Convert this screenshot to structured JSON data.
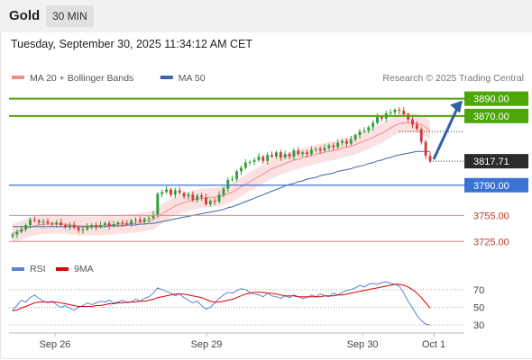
{
  "header": {
    "asset": "Gold",
    "timeframe": "30 MIN",
    "timestamp": "Tuesday, September 30, 2025 11:34:12 AM CET"
  },
  "colors": {
    "resistance": "#4ea60b",
    "support": "#3a73d4",
    "support_weak": "#f08080",
    "arrow": "#2f5fa6",
    "candle_up": "#2e9e3e",
    "candle_down": "#d33a3a",
    "ma20": "#f28b8b",
    "ma50": "#3d64ad",
    "bollinger": "#fbe1e1",
    "rsi": "#5b82d6",
    "rsi_ma": "#e00000"
  },
  "chart_data": [
    {
      "type": "candlestick",
      "legend": [
        {
          "name": "MA 20 + Bollinger Bands",
          "color": "#f28b8b"
        },
        {
          "name": "MA 50",
          "color": "#3d64ad"
        }
      ],
      "credit": "Research © 2025 Trading Central",
      "x_ticks": [
        "Sep 26",
        "Sep 29",
        "Sep 30",
        "Oct 1"
      ],
      "ylim": [
        3718,
        3900
      ],
      "levels": [
        {
          "value": 3890,
          "label": "3890.00",
          "kind": "resistance"
        },
        {
          "value": 3870,
          "label": "3870.00",
          "kind": "resistance"
        },
        {
          "value": 3817.71,
          "label": "3817.71",
          "kind": "last"
        },
        {
          "value": 3790,
          "label": "3790.00",
          "kind": "support"
        },
        {
          "value": 3755,
          "label": "3755.00",
          "kind": "support_weak"
        },
        {
          "value": 3725,
          "label": "3725.00",
          "kind": "support_weak"
        }
      ],
      "close_series": [
        3733,
        3736,
        3739,
        3744,
        3750,
        3749,
        3747,
        3748,
        3746,
        3745,
        3747,
        3744,
        3742,
        3744,
        3741,
        3738,
        3739,
        3742,
        3744,
        3742,
        3744,
        3746,
        3743,
        3745,
        3747,
        3746,
        3745,
        3749,
        3750,
        3748,
        3751,
        3752,
        3756,
        3780,
        3782,
        3785,
        3779,
        3784,
        3781,
        3777,
        3779,
        3773,
        3778,
        3776,
        3768,
        3772,
        3771,
        3779,
        3786,
        3796,
        3797,
        3806,
        3810,
        3816,
        3817,
        3819,
        3823,
        3818,
        3825,
        3823,
        3828,
        3822,
        3826,
        3823,
        3830,
        3826,
        3828,
        3826,
        3831,
        3832,
        3830,
        3833,
        3836,
        3834,
        3839,
        3841,
        3838,
        3843,
        3848,
        3852,
        3853,
        3857,
        3862,
        3869,
        3867,
        3873,
        3874,
        3877,
        3876,
        3872,
        3866,
        3860,
        3855,
        3840,
        3824,
        3817.71
      ],
      "ma20": [
        3734,
        3736,
        3738,
        3740,
        3742,
        3743,
        3744,
        3745,
        3745,
        3745,
        3745,
        3745,
        3745,
        3744,
        3744,
        3743,
        3743,
        3743,
        3743,
        3743,
        3743,
        3744,
        3744,
        3744,
        3745,
        3745,
        3745,
        3746,
        3746,
        3747,
        3748,
        3749,
        3750,
        3753,
        3757,
        3760,
        3763,
        3766,
        3768,
        3770,
        3771,
        3773,
        3774,
        3775,
        3775,
        3776,
        3776,
        3777,
        3778,
        3780,
        3782,
        3785,
        3788,
        3791,
        3794,
        3797,
        3800,
        3803,
        3806,
        3809,
        3811,
        3813,
        3815,
        3817,
        3819,
        3820,
        3822,
        3823,
        3824,
        3826,
        3827,
        3828,
        3829,
        3830,
        3831,
        3833,
        3834,
        3835,
        3837,
        3839,
        3841,
        3843,
        3845,
        3848,
        3850,
        3853,
        3856,
        3859,
        3861,
        3862,
        3862,
        3862,
        3861,
        3860,
        3857,
        3853
      ],
      "ma50": [
        3742,
        3742,
        3742,
        3742,
        3742,
        3742,
        3742,
        3742,
        3742,
        3742,
        3742,
        3742,
        3742,
        3742,
        3742,
        3742,
        3742,
        3742,
        3742,
        3742,
        3742,
        3742,
        3743,
        3743,
        3743,
        3743,
        3744,
        3744,
        3744,
        3745,
        3745,
        3746,
        3746,
        3747,
        3748,
        3749,
        3750,
        3751,
        3752,
        3753,
        3754,
        3755,
        3756,
        3757,
        3758,
        3759,
        3760,
        3761,
        3762,
        3764,
        3765,
        3767,
        3769,
        3771,
        3773,
        3775,
        3777,
        3779,
        3781,
        3783,
        3785,
        3787,
        3789,
        3791,
        3792,
        3794,
        3795,
        3797,
        3798,
        3799,
        3801,
        3802,
        3803,
        3804,
        3806,
        3807,
        3808,
        3809,
        3811,
        3812,
        3813,
        3815,
        3816,
        3818,
        3819,
        3821,
        3822,
        3824,
        3825,
        3826,
        3827,
        3828,
        3829,
        3829,
        3829,
        3829
      ]
    },
    {
      "type": "line",
      "legend": [
        {
          "name": "RSI",
          "color": "#5b82d6"
        },
        {
          "name": "9MA",
          "color": "#e00000"
        }
      ],
      "y_ticks": [
        70,
        50,
        30
      ],
      "ylim": [
        25,
        80
      ],
      "rsi": [
        47,
        52,
        58,
        56,
        61,
        64,
        60,
        57,
        55,
        57,
        53,
        50,
        52,
        49,
        47,
        50,
        52,
        55,
        53,
        55,
        57,
        56,
        58,
        55,
        56,
        58,
        55,
        56,
        59,
        57,
        60,
        62,
        66,
        72,
        70,
        68,
        66,
        63,
        65,
        61,
        58,
        55,
        57,
        52,
        48,
        50,
        55,
        60,
        64,
        67,
        66,
        69,
        71,
        70,
        67,
        65,
        64,
        62,
        66,
        63,
        62,
        60,
        63,
        61,
        64,
        62,
        60,
        61,
        64,
        62,
        65,
        63,
        62,
        66,
        64,
        67,
        69,
        70,
        72,
        75,
        73,
        76,
        77,
        76,
        78,
        79,
        77,
        76,
        74,
        66,
        57,
        49,
        41,
        35,
        31,
        30
      ],
      "rsi_ma": [
        46,
        47,
        49,
        51,
        53,
        55,
        56,
        56,
        56,
        56,
        56,
        55,
        54,
        53,
        52,
        51,
        51,
        51,
        51,
        52,
        52,
        53,
        54,
        54,
        55,
        55,
        56,
        56,
        56,
        57,
        57,
        58,
        59,
        61,
        62,
        63,
        64,
        65,
        65,
        65,
        64,
        63,
        62,
        61,
        59,
        57,
        56,
        56,
        57,
        58,
        59,
        61,
        63,
        65,
        66,
        67,
        67,
        67,
        66,
        66,
        65,
        64,
        63,
        63,
        63,
        62,
        62,
        62,
        62,
        62,
        62,
        63,
        63,
        63,
        64,
        64,
        65,
        66,
        67,
        68,
        69,
        70,
        71,
        72,
        73,
        74,
        75,
        76,
        76,
        75,
        73,
        70,
        66,
        61,
        55,
        49
      ]
    }
  ]
}
